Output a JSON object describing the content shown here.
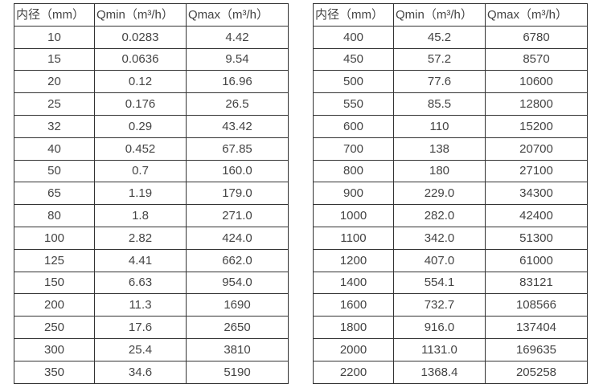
{
  "colors": {
    "background": "#ffffff",
    "border": "#333333",
    "text": "#444444"
  },
  "tables": [
    {
      "name": "flow-rate-table-small-diameters",
      "headers": [
        "内径（mm）",
        "Qmin（m³/h）",
        "Qmax（m³/h）"
      ],
      "rows": [
        [
          "10",
          "0.0283",
          "4.42"
        ],
        [
          "15",
          "0.0636",
          "9.54"
        ],
        [
          "20",
          "0.12",
          "16.96"
        ],
        [
          "25",
          "0.176",
          "26.5"
        ],
        [
          "32",
          "0.29",
          "43.42"
        ],
        [
          "40",
          "0.452",
          "67.85"
        ],
        [
          "50",
          "0.7",
          "160.0"
        ],
        [
          "65",
          "1.19",
          "179.0"
        ],
        [
          "80",
          "1.8",
          "271.0"
        ],
        [
          "100",
          "2.82",
          "424.0"
        ],
        [
          "125",
          "4.41",
          "662.0"
        ],
        [
          "150",
          "6.63",
          "954.0"
        ],
        [
          "200",
          "11.3",
          "1690"
        ],
        [
          "250",
          "17.6",
          "2650"
        ],
        [
          "300",
          "25.4",
          "3810"
        ],
        [
          "350",
          "34.6",
          "5190"
        ]
      ]
    },
    {
      "name": "flow-rate-table-large-diameters",
      "headers": [
        "内径（mm）",
        "Qmin（m³/h）",
        "Qmax（m³/h）"
      ],
      "rows": [
        [
          "400",
          "45.2",
          "6780"
        ],
        [
          "450",
          "57.2",
          "8570"
        ],
        [
          "500",
          "77.6",
          "10600"
        ],
        [
          "550",
          "85.5",
          "12800"
        ],
        [
          "600",
          "110",
          "15200"
        ],
        [
          "700",
          "138",
          "20700"
        ],
        [
          "800",
          "180",
          "27100"
        ],
        [
          "900",
          "229.0",
          "34300"
        ],
        [
          "1000",
          "282.0",
          "42400"
        ],
        [
          "1100",
          "342.0",
          "51300"
        ],
        [
          "1200",
          "407.0",
          "61000"
        ],
        [
          "1400",
          "554.1",
          "83121"
        ],
        [
          "1600",
          "732.7",
          "108566"
        ],
        [
          "1800",
          "916.0",
          "137404"
        ],
        [
          "2000",
          "1131.0",
          "169635"
        ],
        [
          "2200",
          "1368.4",
          "205258"
        ]
      ]
    }
  ]
}
